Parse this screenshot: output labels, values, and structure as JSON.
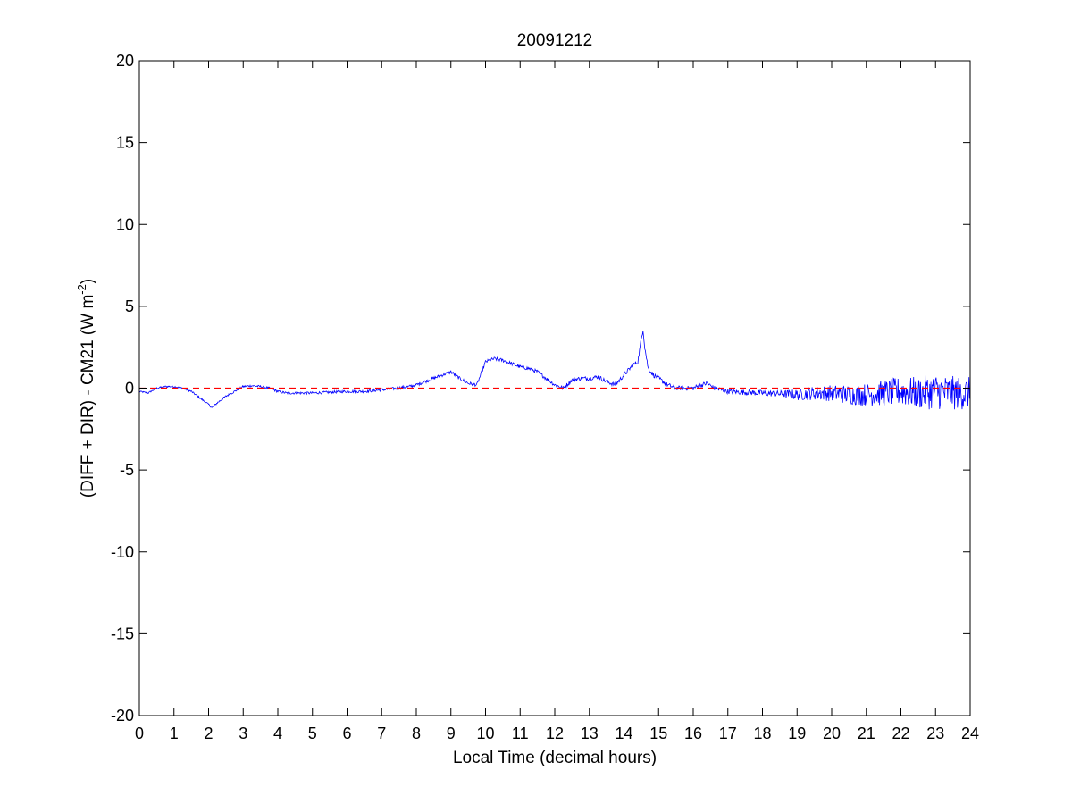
{
  "chart_data": {
    "type": "line",
    "title": "20091212",
    "xlabel": "Local Time (decimal hours)",
    "ylabel": {
      "main": "(DIFF + DIR) - CM21 (W m",
      "superscript": "-2",
      "close": ")"
    },
    "xlim": [
      0,
      24
    ],
    "ylim": [
      -20,
      20
    ],
    "xticks": [
      0,
      1,
      2,
      3,
      4,
      5,
      6,
      7,
      8,
      9,
      10,
      11,
      12,
      13,
      14,
      15,
      16,
      17,
      18,
      19,
      20,
      21,
      22,
      23,
      24
    ],
    "yticks": [
      -20,
      -15,
      -10,
      -5,
      0,
      5,
      10,
      15,
      20
    ],
    "grid": false,
    "series": [
      {
        "color": "#0000ff",
        "style": "solid",
        "x": [
          0,
          0.25,
          0.5,
          0.75,
          1,
          1.25,
          1.5,
          1.75,
          2,
          2.1,
          2.25,
          2.5,
          2.75,
          3,
          3.25,
          3.5,
          3.75,
          4,
          4.25,
          4.5,
          5,
          5.5,
          6,
          6.5,
          7,
          7.5,
          7.8,
          8,
          8.25,
          8.5,
          8.75,
          9,
          9.25,
          9.5,
          9.75,
          10,
          10.25,
          10.5,
          10.75,
          11,
          11.25,
          11.5,
          11.75,
          12,
          12.25,
          12.5,
          12.75,
          13,
          13.25,
          13.5,
          13.75,
          14,
          14.25,
          14.4,
          14.5,
          14.55,
          14.6,
          14.7,
          14.85,
          15,
          15.25,
          15.5,
          15.75,
          16,
          16.25,
          16.4,
          16.6,
          16.8,
          17,
          17.5,
          18,
          18.5,
          19,
          19.5,
          20,
          20.5,
          21,
          21.5,
          22,
          22.5,
          23,
          23.5,
          24
        ],
        "y": [
          -0.2,
          -0.3,
          0.0,
          0.1,
          0.1,
          0.0,
          -0.2,
          -0.6,
          -1.0,
          -1.2,
          -0.9,
          -0.5,
          -0.2,
          0.1,
          0.15,
          0.1,
          0.0,
          -0.2,
          -0.3,
          -0.3,
          -0.3,
          -0.25,
          -0.2,
          -0.2,
          -0.1,
          0.0,
          0.1,
          0.2,
          0.4,
          0.6,
          0.8,
          1.0,
          0.6,
          0.3,
          0.2,
          1.6,
          1.8,
          1.7,
          1.5,
          1.3,
          1.2,
          1.0,
          0.6,
          0.2,
          0.0,
          0.5,
          0.6,
          0.6,
          0.7,
          0.4,
          0.2,
          0.8,
          1.4,
          1.6,
          3.0,
          3.6,
          2.5,
          1.2,
          0.8,
          0.6,
          0.2,
          0.0,
          0.0,
          0.0,
          0.2,
          0.3,
          0.0,
          -0.1,
          -0.2,
          -0.25,
          -0.3,
          -0.35,
          -0.4,
          -0.3,
          -0.3,
          -0.4,
          -0.4,
          -0.3,
          -0.2,
          -0.3,
          -0.2,
          -0.3,
          -0.3
        ],
        "noise_envelope": {
          "x": [
            0,
            12,
            17,
            18.5,
            19,
            20,
            21,
            22,
            23,
            24
          ],
          "amplitude": [
            0.05,
            0.12,
            0.15,
            0.2,
            0.35,
            0.5,
            0.7,
            0.9,
            1.1,
            1.0
          ]
        }
      },
      {
        "color": "#ff0000",
        "style": "dashed",
        "x": [
          0,
          24
        ],
        "y": [
          0,
          0
        ]
      }
    ]
  }
}
